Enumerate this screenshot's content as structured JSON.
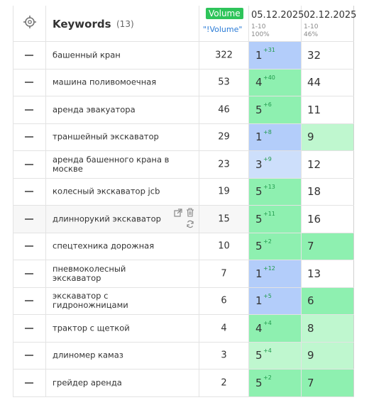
{
  "header": {
    "keywords_title": "Keywords",
    "keywords_count": "(13)",
    "volume_badge": "Volume",
    "volume_exact": "\"!Volume\"",
    "dates": [
      {
        "date": "05.12.2025",
        "range": "1-10",
        "percent": "100%"
      },
      {
        "date": "02.12.2025",
        "range": "1-10",
        "percent": "46%"
      }
    ]
  },
  "rows": [
    {
      "keyword": "башенный кран",
      "volume": "322",
      "pos1": "1",
      "delta": "+31",
      "pos2": "32"
    },
    {
      "keyword": "машина поливомоечная",
      "volume": "53",
      "pos1": "4",
      "delta": "+40",
      "pos2": "44"
    },
    {
      "keyword": "аренда эвакуатора",
      "volume": "46",
      "pos1": "5",
      "delta": "+6",
      "pos2": "11"
    },
    {
      "keyword": "траншейный экскаватор",
      "volume": "29",
      "pos1": "1",
      "delta": "+8",
      "pos2": "9"
    },
    {
      "keyword": "аренда башенного крана в москве",
      "volume": "23",
      "pos1": "3",
      "delta": "+9",
      "pos2": "12"
    },
    {
      "keyword": "колесный экскаватор jcb",
      "volume": "19",
      "pos1": "5",
      "delta": "+13",
      "pos2": "18"
    },
    {
      "keyword": "длиннорукий экскаватор",
      "volume": "15",
      "pos1": "5",
      "delta": "+11",
      "pos2": "16"
    },
    {
      "keyword": "спецтехника дорожная",
      "volume": "10",
      "pos1": "5",
      "delta": "+2",
      "pos2": "7"
    },
    {
      "keyword": "пневмоколесный экскаватор",
      "volume": "7",
      "pos1": "1",
      "delta": "+12",
      "pos2": "13"
    },
    {
      "keyword": "экскаватор с гидроножницами",
      "volume": "6",
      "pos1": "1",
      "delta": "+5",
      "pos2": "6"
    },
    {
      "keyword": "трактор с щеткой",
      "volume": "4",
      "pos1": "4",
      "delta": "+4",
      "pos2": "8"
    },
    {
      "keyword": "длиномер камаз",
      "volume": "3",
      "pos1": "5",
      "delta": "+4",
      "pos2": "9"
    },
    {
      "keyword": "грейдер аренда",
      "volume": "2",
      "pos1": "5",
      "delta": "+2",
      "pos2": "7"
    }
  ],
  "colors": {
    "top3": "#b3cdfa",
    "top3_light": "#cddffb",
    "top10": "#8ef0b0",
    "top10_light": "#bff7cf",
    "volume_badge": "#2ec45a"
  }
}
